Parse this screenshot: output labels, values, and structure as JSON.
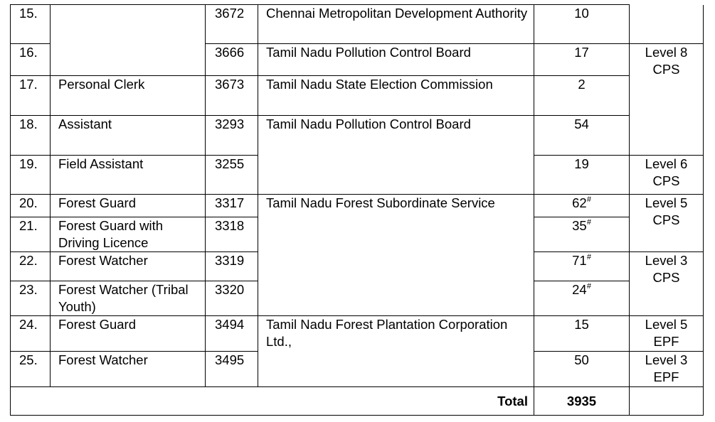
{
  "rows": [
    {
      "sl": "15.",
      "code": "3672",
      "department": "Chennai Metropolitan Development Authority",
      "vacancies": 10
    },
    {
      "sl": "16.",
      "code": "3666",
      "department": "Tamil Nadu Pollution Control Board",
      "vacancies": 17,
      "pay_level": "Level 8",
      "scheme": "CPS"
    },
    {
      "sl": "17.",
      "post": "Personal Clerk",
      "code": "3673",
      "department": "Tamil Nadu State Election Commission",
      "vacancies": 2
    },
    {
      "sl": "18.",
      "post": "Assistant",
      "code": "3293",
      "department": "Tamil Nadu Pollution Control Board",
      "vacancies": 54
    },
    {
      "sl": "19.",
      "post": "Field Assistant",
      "code": "3255",
      "vacancies": 19,
      "pay_level": "Level 6",
      "scheme": "CPS"
    },
    {
      "sl": "20.",
      "post": "Forest Guard",
      "code": "3317",
      "department": "Tamil Nadu Forest Subordinate Service",
      "vacancies": 62,
      "note": "#",
      "pay_level": "Level 5",
      "scheme": "CPS"
    },
    {
      "sl": "21.",
      "post": "Forest Guard with Driving Licence",
      "code": "3318",
      "vacancies": 35,
      "note": "#"
    },
    {
      "sl": "22.",
      "post": "Forest Watcher",
      "code": "3319",
      "vacancies": 71,
      "note": "#",
      "pay_level": "Level 3",
      "scheme": "CPS"
    },
    {
      "sl": "23.",
      "post": "Forest Watcher (Tribal Youth)",
      "code": "3320",
      "vacancies": 24,
      "note": "#"
    },
    {
      "sl": "24.",
      "post": "Forest Guard",
      "code": "3494",
      "department": "Tamil Nadu Forest Plantation Corporation Ltd.,",
      "vacancies": 15,
      "pay_level": "Level 5",
      "scheme": "EPF"
    },
    {
      "sl": "25.",
      "post": "Forest Watcher",
      "code": "3495",
      "vacancies": 50,
      "pay_level": "Level 3",
      "scheme": "EPF"
    }
  ],
  "total": {
    "label": "Total",
    "value": 3935
  }
}
